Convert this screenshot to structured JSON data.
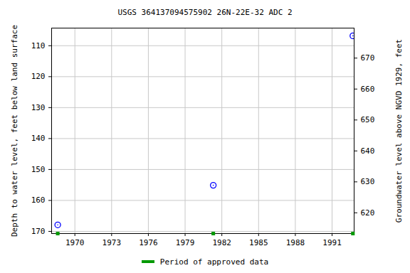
{
  "chart_data": {
    "type": "scatter",
    "title": "USGS 364137094575902 26N-22E-32 ADC 2",
    "y_label": "Depth to water level, feet below land surface",
    "y2_label": "Groundwater level above NGVD 1929, feet",
    "x": [
      1968.6,
      1981.3,
      1992.7
    ],
    "series": [
      {
        "values": [
          167.9,
          155.1,
          106.8
        ],
        "color": "#0000ff",
        "marker": "circle"
      },
      {
        "name": "Period of approved data",
        "type": "rug",
        "color": "#009900",
        "x": [
          1968.6,
          1981.3,
          1992.7
        ]
      }
    ],
    "xlim": [
      1968.1,
      1992.8
    ],
    "xticks": [
      1970,
      1973,
      1976,
      1979,
      1982,
      1985,
      1988,
      1991
    ],
    "ylim": [
      170.7,
      104.3
    ],
    "yticks": [
      110,
      120,
      130,
      140,
      150,
      160,
      170
    ],
    "y2lim": [
      613.3,
      679.7
    ],
    "y2ticks": [
      620,
      630,
      640,
      650,
      660,
      670
    ],
    "grid": true,
    "legend": "bottom"
  }
}
